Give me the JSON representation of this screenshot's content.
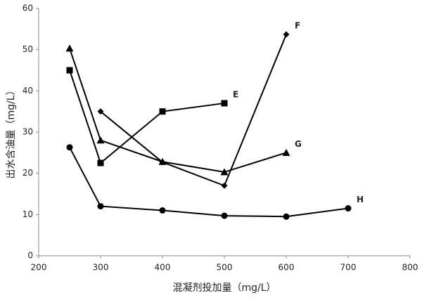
{
  "chart_data": {
    "type": "line",
    "x_label": "混凝剂投加量（mg/L）",
    "y_label": "出水含油量（mg/L）",
    "xlim": [
      200,
      800
    ],
    "xticks": [
      200,
      300,
      400,
      500,
      600,
      700,
      800
    ],
    "ylim": [
      0,
      60
    ],
    "yticks": [
      0,
      10,
      20,
      30,
      40,
      50,
      60
    ],
    "grid": false,
    "series": [
      {
        "name": "E",
        "color": "#000000",
        "marker": "square",
        "x": [
          250,
          300,
          400,
          500
        ],
        "values": [
          45,
          22.5,
          35,
          37
        ]
      },
      {
        "name": "F",
        "color": "#000000",
        "marker": "diamond",
        "x": [
          300,
          400,
          500,
          600
        ],
        "values": [
          35,
          22.7,
          17,
          53.7
        ]
      },
      {
        "name": "G",
        "color": "#000000",
        "marker": "triangle",
        "x": [
          250,
          300,
          400,
          500,
          600
        ],
        "values": [
          50.3,
          28,
          22.8,
          20.3,
          25
        ]
      },
      {
        "name": "H",
        "color": "#000000",
        "marker": "circle",
        "x": [
          250,
          300,
          400,
          500,
          600,
          700
        ],
        "values": [
          26.3,
          12,
          11,
          9.7,
          9.5,
          11.5
        ]
      }
    ]
  }
}
